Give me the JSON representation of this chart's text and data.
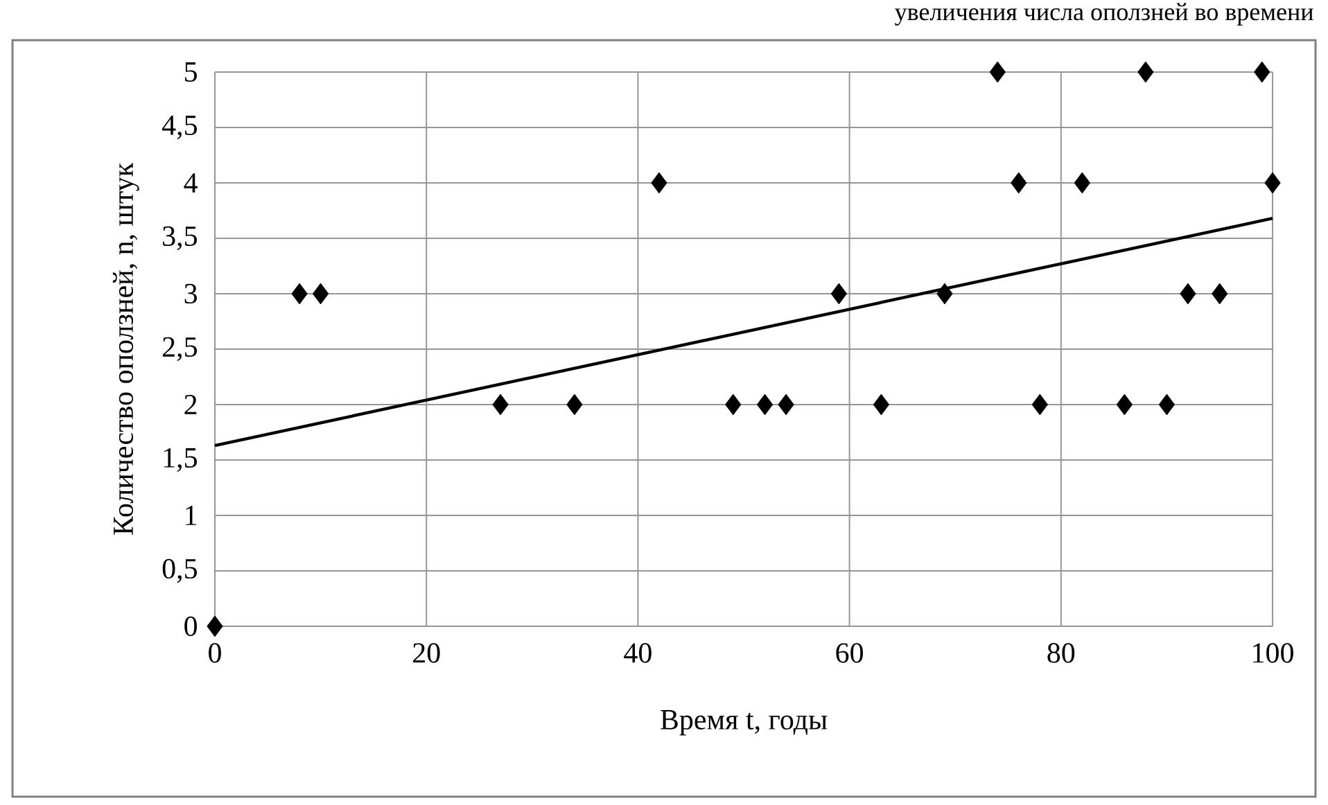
{
  "chart_data": {
    "type": "scatter",
    "title": "увеличения  числа оползней во времени",
    "xlabel": "Время t, годы",
    "ylabel": "Количество оползней,  n, штук",
    "xlim": [
      0,
      100
    ],
    "ylim": [
      0,
      5
    ],
    "xticks": [
      0,
      20,
      40,
      60,
      80,
      100
    ],
    "yticks": [
      0,
      {
        "value": 0.5,
        "label": "0,5"
      },
      1,
      {
        "value": 1.5,
        "label": "1,5"
      },
      2,
      {
        "value": 2.5,
        "label": "2,5"
      },
      3,
      {
        "value": 3.5,
        "label": "3,5"
      },
      4,
      {
        "value": 4.5,
        "label": "4,5"
      },
      5
    ],
    "grid": true,
    "series": [
      {
        "marker": "diamond",
        "color": "#000000",
        "x": [
          0,
          8,
          10,
          27,
          34,
          42,
          49,
          52,
          54,
          59,
          63,
          69,
          74,
          76,
          78,
          82,
          86,
          88,
          90,
          92,
          95,
          99,
          100
        ],
        "values": [
          0,
          3,
          3,
          2,
          2,
          4,
          2,
          2,
          2,
          3,
          2,
          3,
          5,
          4,
          2,
          4,
          2,
          5,
          2,
          3,
          3,
          5,
          4
        ]
      },
      {
        "type": "line",
        "marker": "none",
        "line_style": "solid",
        "color": "#000000",
        "x": [
          0,
          100
        ],
        "values": [
          1.63,
          3.68
        ]
      }
    ]
  }
}
